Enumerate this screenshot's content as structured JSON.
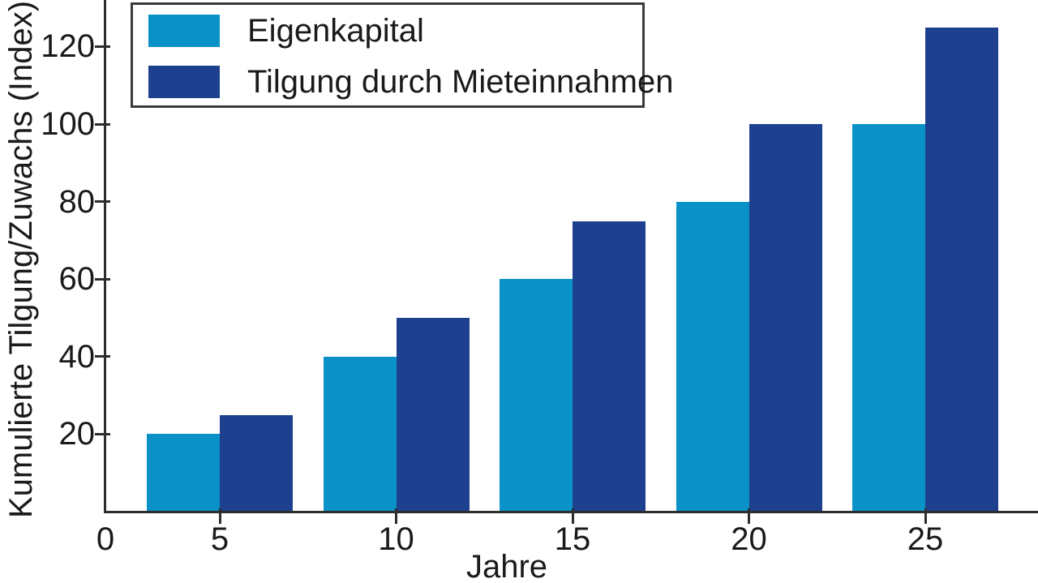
{
  "chart_data": {
    "type": "bar",
    "title": "",
    "categories": [
      "5",
      "10",
      "15",
      "20",
      "25"
    ],
    "series": [
      {
        "name": "Eigenkapital",
        "color": "#0A92C8",
        "values": [
          20,
          40,
          60,
          80,
          100
        ]
      },
      {
        "name": "Tilgung durch Mieteinnahmen",
        "color": "#1E418F",
        "values": [
          25,
          50,
          75,
          100,
          125
        ]
      }
    ],
    "xlabel": "Jahre",
    "ylabel": "Kumulierte Tilgung/Zuwachs (Index)",
    "x_origin_label": "0",
    "yticks": [
      20,
      40,
      60,
      80,
      100,
      120
    ],
    "ylim": [
      0,
      132
    ],
    "xlim_years": [
      0,
      27.5
    ],
    "grid": false,
    "legend_position": "top-left",
    "bar_grouping": "pair straddles each x tick: first series left of tick, second series right of tick"
  },
  "colors": {
    "background": "#FFFFFF",
    "axis": "#2D2D2D",
    "text": "#1A1A1A",
    "legend_border": "#3A3A3A",
    "series_1": "#0A92C8",
    "series_2": "#1E418F"
  }
}
